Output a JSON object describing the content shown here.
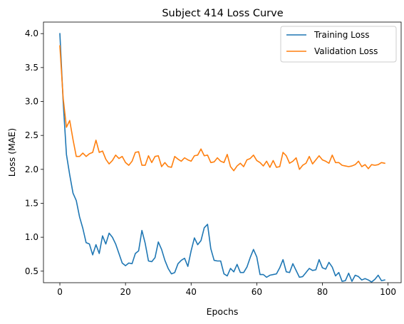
{
  "chart_data": {
    "type": "line",
    "title": "Subject 414 Loss Curve",
    "xlabel": "Epochs",
    "ylabel": "Loss (MAE)",
    "xlim": [
      -5,
      104
    ],
    "ylim": [
      0.33,
      4.17
    ],
    "xticks": [
      0,
      20,
      40,
      60,
      80,
      100
    ],
    "yticks": [
      0.5,
      1.0,
      1.5,
      2.0,
      2.5,
      3.0,
      3.5,
      4.0
    ],
    "ytick_labels": [
      "0.5",
      "1.0",
      "1.5",
      "2.0",
      "2.5",
      "3.0",
      "3.5",
      "4.0"
    ],
    "grid": false,
    "legend_position": "top-right",
    "series": [
      {
        "name": "Training Loss",
        "color": "#1f77b4",
        "values": [
          4.0,
          3.0,
          2.22,
          1.92,
          1.65,
          1.54,
          1.3,
          1.13,
          0.92,
          0.9,
          0.74,
          0.89,
          0.76,
          1.02,
          0.9,
          1.06,
          1.0,
          0.9,
          0.76,
          0.62,
          0.58,
          0.62,
          0.61,
          0.76,
          0.8,
          1.1,
          0.91,
          0.65,
          0.64,
          0.7,
          0.93,
          0.82,
          0.66,
          0.54,
          0.46,
          0.48,
          0.61,
          0.66,
          0.69,
          0.57,
          0.8,
          0.99,
          0.89,
          0.95,
          1.14,
          1.19,
          0.83,
          0.66,
          0.65,
          0.65,
          0.46,
          0.43,
          0.54,
          0.49,
          0.6,
          0.48,
          0.48,
          0.56,
          0.7,
          0.82,
          0.71,
          0.45,
          0.45,
          0.41,
          0.44,
          0.45,
          0.46,
          0.55,
          0.67,
          0.49,
          0.48,
          0.61,
          0.51,
          0.41,
          0.42,
          0.48,
          0.54,
          0.51,
          0.52,
          0.67,
          0.55,
          0.53,
          0.63,
          0.56,
          0.43,
          0.48,
          0.35,
          0.36,
          0.47,
          0.35,
          0.44,
          0.42,
          0.37,
          0.39,
          0.37,
          0.34,
          0.38,
          0.44,
          0.36,
          0.37
        ]
      },
      {
        "name": "Validation Loss",
        "color": "#ff7f0e",
        "values": [
          3.82,
          3.05,
          2.62,
          2.72,
          2.44,
          2.19,
          2.19,
          2.24,
          2.19,
          2.23,
          2.25,
          2.43,
          2.25,
          2.27,
          2.15,
          2.08,
          2.13,
          2.21,
          2.16,
          2.19,
          2.1,
          2.06,
          2.12,
          2.25,
          2.26,
          2.06,
          2.06,
          2.2,
          2.1,
          2.19,
          2.2,
          2.04,
          2.1,
          2.04,
          2.03,
          2.19,
          2.15,
          2.12,
          2.17,
          2.14,
          2.12,
          2.2,
          2.21,
          2.3,
          2.2,
          2.21,
          2.1,
          2.11,
          2.17,
          2.12,
          2.1,
          2.22,
          2.04,
          1.98,
          2.05,
          2.09,
          2.04,
          2.14,
          2.16,
          2.21,
          2.13,
          2.1,
          2.05,
          2.12,
          2.03,
          2.13,
          2.03,
          2.04,
          2.25,
          2.2,
          2.09,
          2.12,
          2.17,
          2.0,
          2.06,
          2.09,
          2.19,
          2.08,
          2.14,
          2.2,
          2.14,
          2.12,
          2.09,
          2.21,
          2.1,
          2.1,
          2.06,
          2.05,
          2.04,
          2.05,
          2.07,
          2.12,
          2.04,
          2.07,
          2.01,
          2.07,
          2.06,
          2.07,
          2.1,
          2.09
        ]
      }
    ]
  }
}
